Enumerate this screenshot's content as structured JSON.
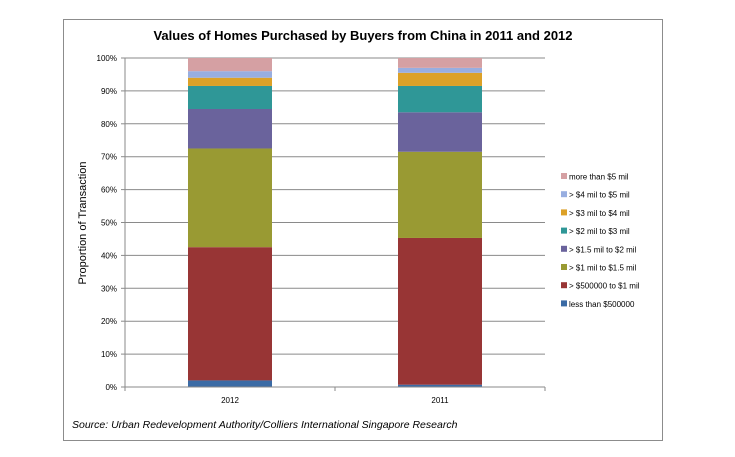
{
  "chart_data": {
    "type": "bar",
    "stacked": true,
    "title": "Values of Homes Purchased by Buyers from China in 2011 and 2012",
    "xlabel": "",
    "ylabel": "Proportion of Transaction",
    "ylim": [
      0,
      100
    ],
    "yticks": [
      "0%",
      "10%",
      "20%",
      "30%",
      "40%",
      "50%",
      "60%",
      "70%",
      "80%",
      "90%",
      "100%"
    ],
    "categories": [
      "2012",
      "2011"
    ],
    "grid": true,
    "legend_position": "right",
    "series": [
      {
        "name": "less than $500000",
        "color": "#3b6ba5",
        "values": [
          2,
          0.7
        ]
      },
      {
        "name": "> $500000 to $1 mil",
        "color": "#983535",
        "values": [
          40.5,
          44.6
        ]
      },
      {
        "name": "> $1 mil to $1.5 mil",
        "color": "#999a33",
        "values": [
          30,
          26.2
        ]
      },
      {
        "name": "> $1.5 mil to $2 mil",
        "color": "#6a639c",
        "values": [
          12,
          12
        ]
      },
      {
        "name": "> $2 mil to $3 mil",
        "color": "#2f9797",
        "values": [
          7,
          8
        ]
      },
      {
        "name": "> $3 mil to $4 mil",
        "color": "#dca128",
        "values": [
          2.5,
          4
        ]
      },
      {
        "name": "> $4 mil to $5 mil",
        "color": "#98aee0",
        "values": [
          2,
          1.5
        ]
      },
      {
        "name": "more than $5 mil",
        "color": "#d5a0a3",
        "values": [
          4,
          3
        ]
      }
    ]
  },
  "source": "Source: Urban Redevelopment Authority/Colliers International Singapore Research"
}
